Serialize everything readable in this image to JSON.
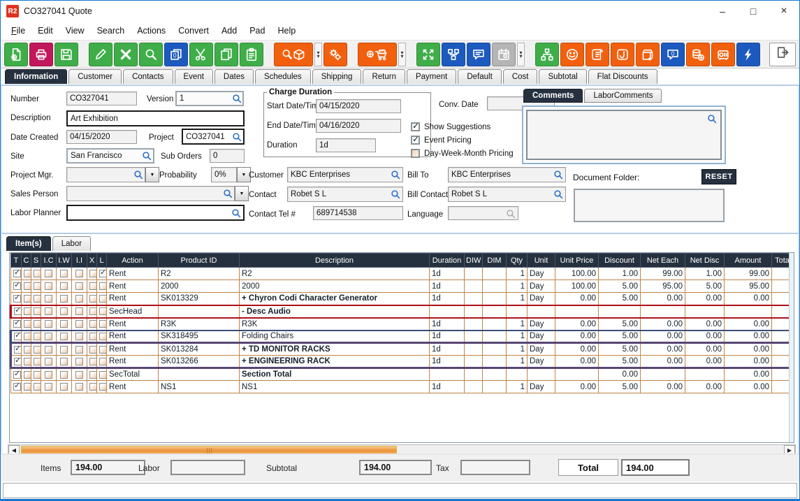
{
  "window": {
    "title": "CO327041 Quote",
    "icon_text": "R2"
  },
  "menu": {
    "items": [
      "File",
      "Edit",
      "View",
      "Search",
      "Actions",
      "Convert",
      "Add",
      "Pad",
      "Help"
    ]
  },
  "toolbar": {
    "buttons": [
      {
        "name": "new-document-icon",
        "color": "green"
      },
      {
        "name": "print-icon",
        "color": "crimson"
      },
      {
        "name": "save-icon",
        "color": "green",
        "gap_after": true
      },
      {
        "name": "edit-icon",
        "color": "green"
      },
      {
        "name": "delete-icon",
        "color": "green"
      },
      {
        "name": "search-icon",
        "color": "green"
      },
      {
        "name": "duplicate-zero-icon",
        "color": "blue"
      },
      {
        "name": "cut-icon",
        "color": "green"
      },
      {
        "name": "copy-icon",
        "color": "green"
      },
      {
        "name": "paste-icon",
        "color": "green",
        "gap_after": true
      },
      {
        "name": "search-product-icon",
        "color": "orange",
        "wide": true,
        "dropdown": true
      },
      {
        "name": "gears-icon",
        "color": "orange",
        "gap_after": true
      },
      {
        "name": "add-po-cart-icon",
        "color": "orange",
        "wide": true,
        "dropdown": true,
        "gap_after": true
      },
      {
        "name": "expand-icon",
        "color": "green"
      },
      {
        "name": "flowchart-icon",
        "color": "blue"
      },
      {
        "name": "comment-icon",
        "color": "blue"
      },
      {
        "name": "calendar-icon",
        "color": "gray",
        "disabled": true,
        "dropdown": true,
        "gap_after": true
      },
      {
        "name": "hierarchy-icon",
        "color": "green"
      },
      {
        "name": "smiley-icon",
        "color": "orange"
      },
      {
        "name": "scroll-icon",
        "color": "orange"
      },
      {
        "name": "journal-icon",
        "color": "orange"
      },
      {
        "name": "box-return-icon",
        "color": "orange"
      },
      {
        "name": "comment-zero-icon",
        "color": "blue"
      },
      {
        "name": "coins-add-icon",
        "color": "orange"
      },
      {
        "name": "safe-icon",
        "color": "orange"
      },
      {
        "name": "lightning-icon",
        "color": "blue"
      }
    ]
  },
  "tabs": {
    "items": [
      "Information",
      "Customer",
      "Contacts",
      "Event",
      "Dates",
      "Schedules",
      "Shipping",
      "Return",
      "Payment",
      "Default",
      "Cost",
      "Subtotal",
      "Flat Discounts"
    ],
    "active": "Information"
  },
  "form": {
    "number": {
      "label": "Number",
      "value": "CO327041"
    },
    "version": {
      "label": "Version",
      "value": "1"
    },
    "description": {
      "label": "Description",
      "value": "Art Exhibition"
    },
    "date_created": {
      "label": "Date Created",
      "value": "04/15/2020"
    },
    "project": {
      "label": "Project",
      "value": "CO327041"
    },
    "site": {
      "label": "Site",
      "value": "San Francisco"
    },
    "sub_orders": {
      "label": "Sub Orders",
      "value": "0"
    },
    "project_mgr": {
      "label": "Project Mgr.",
      "value": ""
    },
    "probability": {
      "label": "Probability",
      "value": "0%"
    },
    "sales_person": {
      "label": "Sales Person",
      "value": ""
    },
    "labor_planner": {
      "label": "Labor Planner",
      "value": ""
    },
    "charge_duration": {
      "title": "Charge Duration",
      "start": {
        "label": "Start Date/Time",
        "value": "04/15/2020"
      },
      "end": {
        "label": "End Date/Time",
        "value": "04/16/2020"
      },
      "duration": {
        "label": "Duration",
        "value": "1d"
      }
    },
    "conv_date": {
      "label": "Conv. Date",
      "value": ""
    },
    "checkboxes": [
      {
        "name": "show-suggestions",
        "label": "Show Suggestions",
        "checked": true
      },
      {
        "name": "event-pricing",
        "label": "Event Pricing",
        "checked": true
      },
      {
        "name": "day-week-month-pricing",
        "label": "Day-Week-Month Pricing",
        "checked": false
      }
    ],
    "customer": {
      "label": "Customer",
      "value": "KBC Enterprises"
    },
    "bill_to": {
      "label": "Bill To",
      "value": "KBC Enterprises"
    },
    "contact": {
      "label": "Contact",
      "value": "Robet S L"
    },
    "bill_contact": {
      "label": "Bill Contact",
      "value": "Robet S L"
    },
    "contact_tel": {
      "label": "Contact Tel #",
      "value": "689714538"
    },
    "language": {
      "label": "Language",
      "value": ""
    },
    "comments_tabs": [
      "Comments",
      "LaborComments"
    ],
    "document_folder": {
      "label": "Document Folder:",
      "reset_label": "RESET",
      "value": ""
    }
  },
  "items": {
    "tabs": [
      "Item(s)",
      "Labor"
    ],
    "columns": [
      "T",
      "C",
      "S",
      "I.C",
      "I.W",
      "I.I",
      "X",
      "L",
      "Action",
      "Product ID",
      "Description",
      "Duration",
      "DIW",
      "DIM",
      "Qty",
      "Unit",
      "Unit Price",
      "Discount",
      "Net Each",
      "Net Disc",
      "Amount",
      "Tota"
    ],
    "rows": [
      {
        "checks": [
          1,
          0,
          0,
          0,
          0,
          0,
          0,
          1
        ],
        "cells": [
          "Rent",
          "R2",
          "R2",
          "1d",
          "",
          "",
          "1",
          "Day",
          "100.00",
          "1.00",
          "99.00",
          "1.00",
          "99.00",
          ""
        ]
      },
      {
        "checks": [
          1,
          0,
          0,
          0,
          0,
          0,
          0,
          0
        ],
        "cells": [
          "Rent",
          "2000",
          "2000",
          "1d",
          "",
          "",
          "1",
          "Day",
          "100.00",
          "5.00",
          "95.00",
          "5.00",
          "95.00",
          ""
        ]
      },
      {
        "checks": [
          1,
          0,
          0,
          0,
          0,
          0,
          0,
          0
        ],
        "bold": true,
        "cells": [
          "Rent",
          "SK013329",
          "+  Chyron Codi Character Generator",
          "1d",
          "",
          "",
          "1",
          "Day",
          "0.00",
          "5.00",
          "0.00",
          "0.00",
          "0.00",
          ""
        ]
      },
      {
        "checks": [
          1,
          0,
          0,
          0,
          0,
          0,
          0,
          0
        ],
        "bold": true,
        "frame": "fr-red",
        "cells": [
          "SecHead",
          "",
          "-  Desc Audio",
          "",
          "",
          "",
          "",
          "",
          "",
          "",
          "",
          "",
          "",
          ""
        ]
      },
      {
        "checks": [
          1,
          0,
          0,
          0,
          0,
          0,
          0,
          0
        ],
        "cells": [
          "Rent",
          "R3K",
          "R3K",
          "1d",
          "",
          "",
          "1",
          "Day",
          "0.00",
          "5.00",
          "0.00",
          "0.00",
          "0.00",
          ""
        ]
      },
      {
        "checks": [
          1,
          0,
          0,
          0,
          0,
          0,
          0,
          0
        ],
        "frame": "fr-navy",
        "cells": [
          "Rent",
          "SK318495",
          "Folding Chairs",
          "1d",
          "",
          "",
          "1",
          "Day",
          "0.00",
          "5.00",
          "0.00",
          "0.00",
          "0.00",
          ""
        ]
      },
      {
        "checks": [
          1,
          0,
          0,
          0,
          0,
          0,
          0,
          0
        ],
        "bold": true,
        "frame": "fr-ptop",
        "cells": [
          "Rent",
          "SK013284",
          "+  TD MONITOR RACKS",
          "1d",
          "",
          "",
          "1",
          "Day",
          "0.00",
          "5.00",
          "0.00",
          "0.00",
          "0.00",
          ""
        ]
      },
      {
        "checks": [
          1,
          0,
          0,
          0,
          0,
          0,
          0,
          0
        ],
        "bold": true,
        "frame": "fr-pbot",
        "cells": [
          "Rent",
          "SK013266",
          "+  ENGINEERING RACK",
          "1d",
          "",
          "",
          "1",
          "Day",
          "0.00",
          "5.00",
          "0.00",
          "0.00",
          "0.00",
          ""
        ]
      },
      {
        "checks": [
          1,
          0,
          0,
          0,
          0,
          0,
          0,
          0
        ],
        "bold": true,
        "cells": [
          "SecTotal",
          "",
          "Section Total",
          "",
          "",
          "",
          "",
          "",
          "",
          "0.00",
          "",
          "",
          "0.00",
          ""
        ]
      },
      {
        "checks": [
          1,
          0,
          0,
          0,
          0,
          0,
          0,
          0
        ],
        "cells": [
          "Rent",
          "NS1",
          "NS1",
          "1d",
          "",
          "",
          "1",
          "Day",
          "0.00",
          "5.00",
          "0.00",
          "0.00",
          "0.00",
          ""
        ]
      }
    ]
  },
  "footer": {
    "items": {
      "label": "Items",
      "value": "194.00"
    },
    "labor": {
      "label": "Labor",
      "value": ""
    },
    "subtotal": {
      "label": "Subtotal",
      "value": "194.00"
    },
    "tax": {
      "label": "Tax",
      "value": ""
    },
    "total": {
      "label": "Total",
      "value": "194.00"
    }
  },
  "colors": {
    "accent_green": "#3fae49",
    "accent_crimson": "#c2185b",
    "accent_blue": "#1d5abf",
    "accent_orange": "#f2600e",
    "header_navy": "#26313f",
    "cell_border_tan": "#c08448",
    "row_frame_red": "#ae1016",
    "row_frame_purple": "#584672",
    "row_frame_navy": "#3c4c74",
    "scroll_thumb_orange": "#ea9336",
    "window_border_blue": "#1677d2"
  }
}
